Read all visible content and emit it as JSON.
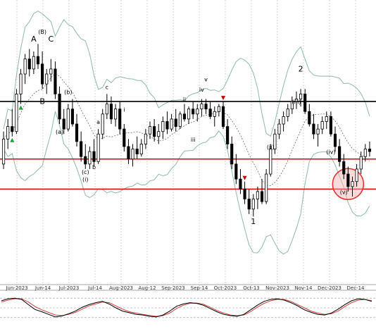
{
  "colors": {
    "background": "#ffffff",
    "candle_up": "#ffffff",
    "candle_down": "#000000",
    "band": "#8fb8b0",
    "midline": "#555555",
    "resistance": "#000000",
    "support": "#e00000",
    "buy_marker": "#1a9e3a",
    "sell_marker": "#c00000",
    "highlight_fill": "#f7b0b0",
    "highlight_stroke": "#e03030",
    "osc_k": "#000000",
    "osc_d": "#d04040",
    "grid": "#b8b8b8"
  },
  "chart_data": {
    "type": "candlestick",
    "title": "",
    "xlabel": "",
    "ylabel": "",
    "x_tick_labels": [
      "Jun-2023",
      "Jun-14",
      "Jul-2023",
      "Jul-14",
      "Aug-2023",
      "Aug-12",
      "Sep-2023",
      "Sep-14",
      "Oct-2023",
      "Oct-13",
      "Nov-2023",
      "Nov-14",
      "Dec-2023",
      "Dec-14"
    ],
    "price_index_range": [
      0,
      100
    ],
    "horizontal_lines": [
      {
        "kind": "resistance",
        "level": 67
      },
      {
        "kind": "support",
        "level": 44
      },
      {
        "kind": "support",
        "level": 32
      }
    ],
    "candles": [
      {
        "o": 42,
        "h": 55,
        "l": 40,
        "c": 52
      },
      {
        "o": 52,
        "h": 60,
        "l": 48,
        "c": 57
      },
      {
        "o": 57,
        "h": 64,
        "l": 53,
        "c": 55
      },
      {
        "o": 55,
        "h": 72,
        "l": 54,
        "c": 70
      },
      {
        "o": 70,
        "h": 80,
        "l": 66,
        "c": 78
      },
      {
        "o": 78,
        "h": 86,
        "l": 74,
        "c": 84
      },
      {
        "o": 84,
        "h": 88,
        "l": 77,
        "c": 80
      },
      {
        "o": 80,
        "h": 87,
        "l": 78,
        "c": 85
      },
      {
        "o": 85,
        "h": 90,
        "l": 80,
        "c": 82
      },
      {
        "o": 82,
        "h": 87,
        "l": 72,
        "c": 74
      },
      {
        "o": 74,
        "h": 80,
        "l": 70,
        "c": 78
      },
      {
        "o": 78,
        "h": 84,
        "l": 75,
        "c": 80
      },
      {
        "o": 80,
        "h": 83,
        "l": 68,
        "c": 70
      },
      {
        "o": 70,
        "h": 73,
        "l": 58,
        "c": 60
      },
      {
        "o": 60,
        "h": 64,
        "l": 54,
        "c": 56
      },
      {
        "o": 56,
        "h": 66,
        "l": 55,
        "c": 64
      },
      {
        "o": 64,
        "h": 68,
        "l": 57,
        "c": 58
      },
      {
        "o": 58,
        "h": 62,
        "l": 49,
        "c": 51
      },
      {
        "o": 51,
        "h": 55,
        "l": 43,
        "c": 45
      },
      {
        "o": 45,
        "h": 50,
        "l": 40,
        "c": 42
      },
      {
        "o": 42,
        "h": 49,
        "l": 40,
        "c": 47
      },
      {
        "o": 47,
        "h": 52,
        "l": 41,
        "c": 43
      },
      {
        "o": 43,
        "h": 56,
        "l": 42,
        "c": 54
      },
      {
        "o": 54,
        "h": 64,
        "l": 52,
        "c": 62
      },
      {
        "o": 62,
        "h": 70,
        "l": 60,
        "c": 66
      },
      {
        "o": 66,
        "h": 69,
        "l": 58,
        "c": 60
      },
      {
        "o": 60,
        "h": 66,
        "l": 57,
        "c": 64
      },
      {
        "o": 64,
        "h": 67,
        "l": 54,
        "c": 56
      },
      {
        "o": 56,
        "h": 58,
        "l": 47,
        "c": 49
      },
      {
        "o": 49,
        "h": 52,
        "l": 42,
        "c": 44
      },
      {
        "o": 44,
        "h": 50,
        "l": 41,
        "c": 48
      },
      {
        "o": 48,
        "h": 53,
        "l": 44,
        "c": 46
      },
      {
        "o": 46,
        "h": 52,
        "l": 45,
        "c": 50
      },
      {
        "o": 50,
        "h": 56,
        "l": 48,
        "c": 54
      },
      {
        "o": 54,
        "h": 59,
        "l": 52,
        "c": 57
      },
      {
        "o": 57,
        "h": 60,
        "l": 51,
        "c": 53
      },
      {
        "o": 53,
        "h": 58,
        "l": 50,
        "c": 55
      },
      {
        "o": 55,
        "h": 61,
        "l": 52,
        "c": 59
      },
      {
        "o": 59,
        "h": 63,
        "l": 54,
        "c": 56
      },
      {
        "o": 56,
        "h": 62,
        "l": 55,
        "c": 60
      },
      {
        "o": 60,
        "h": 64,
        "l": 55,
        "c": 57
      },
      {
        "o": 57,
        "h": 63,
        "l": 56,
        "c": 62
      },
      {
        "o": 62,
        "h": 66,
        "l": 59,
        "c": 60
      },
      {
        "o": 60,
        "h": 65,
        "l": 58,
        "c": 64
      },
      {
        "o": 64,
        "h": 67,
        "l": 60,
        "c": 62
      },
      {
        "o": 62,
        "h": 66,
        "l": 59,
        "c": 64
      },
      {
        "o": 64,
        "h": 68,
        "l": 61,
        "c": 66
      },
      {
        "o": 66,
        "h": 68,
        "l": 62,
        "c": 64
      },
      {
        "o": 64,
        "h": 67,
        "l": 60,
        "c": 61
      },
      {
        "o": 61,
        "h": 65,
        "l": 57,
        "c": 63
      },
      {
        "o": 63,
        "h": 66,
        "l": 61,
        "c": 65
      },
      {
        "o": 65,
        "h": 67,
        "l": 56,
        "c": 57
      },
      {
        "o": 57,
        "h": 60,
        "l": 48,
        "c": 50
      },
      {
        "o": 50,
        "h": 53,
        "l": 40,
        "c": 42
      },
      {
        "o": 42,
        "h": 46,
        "l": 34,
        "c": 36
      },
      {
        "o": 36,
        "h": 40,
        "l": 30,
        "c": 32
      },
      {
        "o": 32,
        "h": 35,
        "l": 26,
        "c": 28
      },
      {
        "o": 28,
        "h": 32,
        "l": 22,
        "c": 24
      },
      {
        "o": 24,
        "h": 30,
        "l": 21,
        "c": 28
      },
      {
        "o": 28,
        "h": 33,
        "l": 24,
        "c": 31
      },
      {
        "o": 31,
        "h": 36,
        "l": 26,
        "c": 27
      },
      {
        "o": 27,
        "h": 40,
        "l": 26,
        "c": 38
      },
      {
        "o": 38,
        "h": 50,
        "l": 37,
        "c": 48
      },
      {
        "o": 48,
        "h": 56,
        "l": 46,
        "c": 54
      },
      {
        "o": 54,
        "h": 60,
        "l": 52,
        "c": 58
      },
      {
        "o": 58,
        "h": 63,
        "l": 55,
        "c": 61
      },
      {
        "o": 61,
        "h": 66,
        "l": 59,
        "c": 64
      },
      {
        "o": 64,
        "h": 69,
        "l": 62,
        "c": 67
      },
      {
        "o": 67,
        "h": 71,
        "l": 64,
        "c": 68
      },
      {
        "o": 68,
        "h": 72,
        "l": 65,
        "c": 70
      },
      {
        "o": 70,
        "h": 72,
        "l": 62,
        "c": 63
      },
      {
        "o": 63,
        "h": 66,
        "l": 57,
        "c": 58
      },
      {
        "o": 58,
        "h": 62,
        "l": 52,
        "c": 54
      },
      {
        "o": 54,
        "h": 58,
        "l": 49,
        "c": 56
      },
      {
        "o": 56,
        "h": 61,
        "l": 54,
        "c": 59
      },
      {
        "o": 59,
        "h": 63,
        "l": 56,
        "c": 61
      },
      {
        "o": 61,
        "h": 63,
        "l": 53,
        "c": 54
      },
      {
        "o": 54,
        "h": 57,
        "l": 47,
        "c": 49
      },
      {
        "o": 49,
        "h": 52,
        "l": 41,
        "c": 43
      },
      {
        "o": 43,
        "h": 46,
        "l": 36,
        "c": 38
      },
      {
        "o": 38,
        "h": 41,
        "l": 31,
        "c": 33
      },
      {
        "o": 33,
        "h": 37,
        "l": 29,
        "c": 35
      },
      {
        "o": 35,
        "h": 42,
        "l": 33,
        "c": 40
      },
      {
        "o": 40,
        "h": 47,
        "l": 38,
        "c": 45
      },
      {
        "o": 45,
        "h": 50,
        "l": 43,
        "c": 48
      },
      {
        "o": 48,
        "h": 51,
        "l": 45,
        "c": 47
      }
    ],
    "annotations": [
      "A",
      "(B)",
      "C",
      "B",
      "(a)",
      "(b)",
      "(c)",
      "a",
      "b",
      "c",
      "(i)",
      "i",
      "ii",
      "iii",
      "iv",
      "v",
      "(ii)",
      "(iii)",
      "(iv)",
      "(v)",
      "1",
      "2"
    ],
    "oscillator": {
      "k": [
        72,
        78,
        80,
        76,
        60,
        45,
        38,
        30,
        22,
        25,
        32,
        40,
        52,
        60,
        66,
        70,
        62,
        50,
        40,
        35,
        30,
        28,
        24,
        22,
        28,
        40,
        55,
        62,
        66,
        64,
        58,
        48,
        38,
        30,
        26,
        24,
        30,
        44,
        58,
        70,
        76,
        78,
        74,
        66,
        56,
        44,
        36,
        30,
        28,
        34,
        46,
        60,
        72,
        78,
        76,
        70
      ],
      "d": [
        68,
        74,
        78,
        78,
        68,
        54,
        44,
        36,
        28,
        26,
        30,
        36,
        46,
        56,
        62,
        68,
        66,
        56,
        46,
        38,
        34,
        30,
        27,
        24,
        26,
        34,
        48,
        58,
        64,
        65,
        61,
        52,
        42,
        34,
        28,
        26,
        28,
        38,
        52,
        64,
        72,
        76,
        76,
        70,
        60,
        50,
        40,
        34,
        30,
        32,
        40,
        54,
        66,
        74,
        76,
        72
      ],
      "levels": [
        80,
        50,
        20
      ]
    }
  }
}
